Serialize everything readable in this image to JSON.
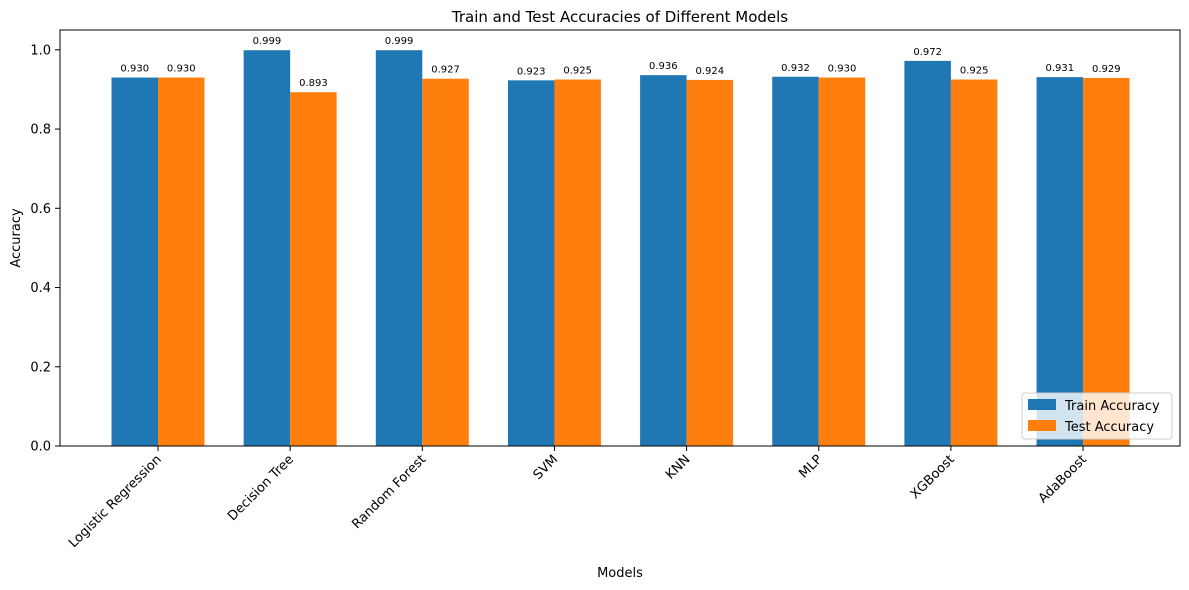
{
  "chart_data": {
    "type": "bar",
    "title": "Train and Test Accuracies of Different Models",
    "xlabel": "Models",
    "ylabel": "Accuracy",
    "ylim": [
      0,
      1.05
    ],
    "yticks": [
      "0.0",
      "0.2",
      "0.4",
      "0.6",
      "0.8",
      "1.0"
    ],
    "categories": [
      "Logistic Regression",
      "Decision Tree",
      "Random Forest",
      "SVM",
      "KNN",
      "MLP",
      "XGBoost",
      "AdaBoost"
    ],
    "series": [
      {
        "name": "Train Accuracy",
        "color": "#1f77b4",
        "values": [
          0.93,
          0.999,
          0.999,
          0.923,
          0.936,
          0.932,
          0.972,
          0.931
        ],
        "labels": [
          "0.930",
          "0.999",
          "0.999",
          "0.923",
          "0.936",
          "0.932",
          "0.972",
          "0.931"
        ]
      },
      {
        "name": "Test Accuracy",
        "color": "#ff7f0e",
        "values": [
          0.93,
          0.893,
          0.927,
          0.925,
          0.924,
          0.93,
          0.925,
          0.929
        ],
        "labels": [
          "0.930",
          "0.893",
          "0.927",
          "0.925",
          "0.924",
          "0.930",
          "0.925",
          "0.929"
        ]
      }
    ],
    "legend_position": "lower-right",
    "grid": false
  }
}
